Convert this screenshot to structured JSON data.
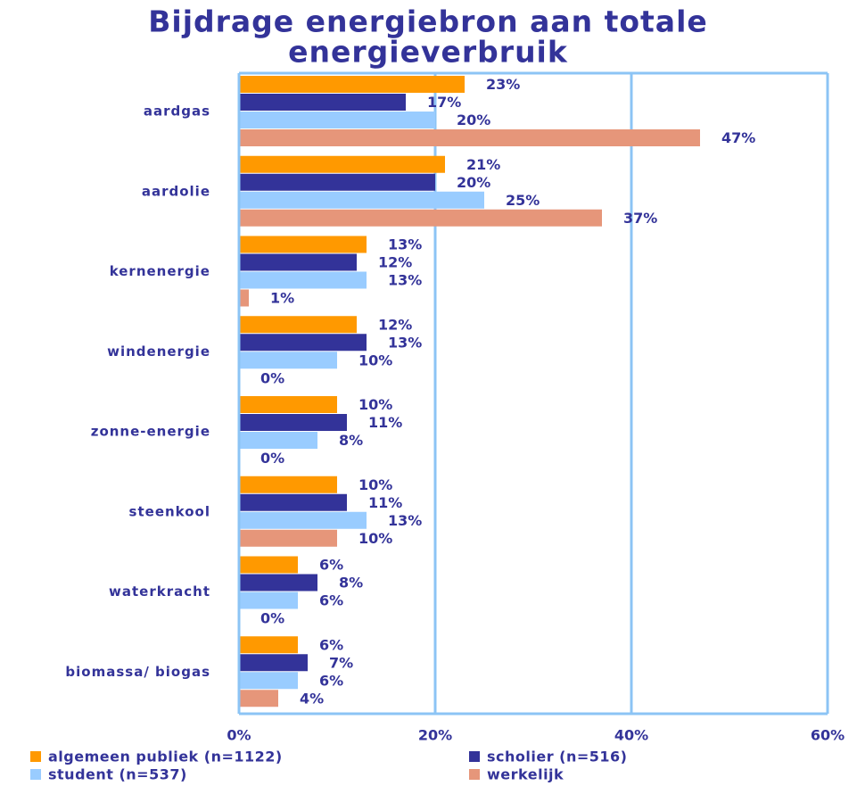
{
  "chart_data": {
    "type": "hbar",
    "title": [
      "Bijdrage energiebron aan totale",
      "energieverbruik"
    ],
    "categories": [
      "aardgas",
      "aardolie",
      "kernenergie",
      "windenergie",
      "zonne-energie",
      "steenkool",
      "waterkracht",
      "biomassa/ biogas"
    ],
    "series": [
      {
        "name": "algemeen publiek (n=1122)",
        "color": "#ff9900",
        "values": [
          23,
          21,
          13,
          12,
          10,
          10,
          6,
          6
        ],
        "value_labels": [
          "23%",
          "21%",
          "13%",
          "12%",
          "10%",
          "10%",
          "6%",
          "6%"
        ]
      },
      {
        "name": "scholier (n=516)",
        "color": "#333399",
        "values": [
          17,
          20,
          12,
          13,
          11,
          11,
          8,
          7
        ],
        "value_labels": [
          "17%",
          "20%",
          "12%",
          "13%",
          "11%",
          "11%",
          "8%",
          "7%"
        ]
      },
      {
        "name": "student (n=537)",
        "color": "#99ccff",
        "values": [
          20,
          25,
          13,
          10,
          8,
          13,
          6,
          6
        ],
        "value_labels": [
          "20%",
          "25%",
          "13%",
          "10%",
          "8%",
          "13%",
          "6%",
          "6%"
        ]
      },
      {
        "name": "werkelijk",
        "color": "#e6967a",
        "values": [
          47,
          37,
          1,
          0,
          0,
          10,
          0,
          4
        ],
        "value_labels": [
          "47%",
          "37%",
          "1%",
          "0%",
          "0%",
          "10%",
          "0%",
          "4%"
        ]
      }
    ],
    "xlim": [
      0,
      60
    ],
    "xticks": [
      {
        "value": 0,
        "label": "0%"
      },
      {
        "value": 20,
        "label": "20%"
      },
      {
        "value": 40,
        "label": "40%"
      },
      {
        "value": 60,
        "label": "60%"
      }
    ],
    "grid": true,
    "legend": "bottom"
  }
}
